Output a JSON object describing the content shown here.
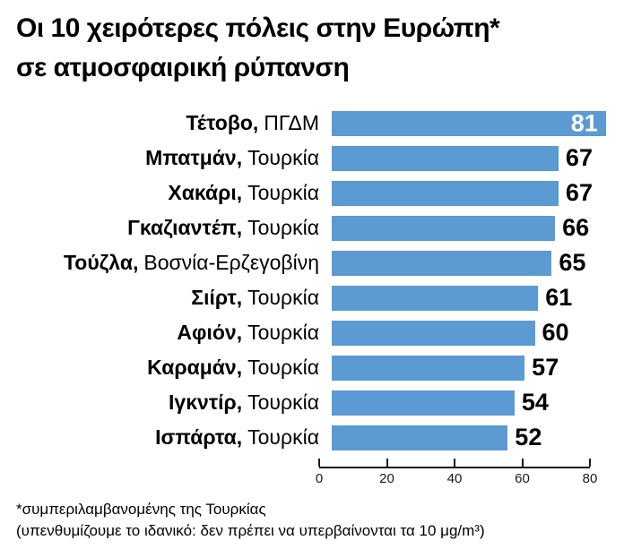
{
  "title": {
    "line1": "Οι 10 χειρότερες πόλεις στην Ευρώπη*",
    "line2": "σε ατμοσφαιρική ρύπανση"
  },
  "chart_data": {
    "type": "bar",
    "orientation": "horizontal",
    "title": "Οι 10 χειρότερες πόλεις στην Ευρώπη* σε ατμοσφαιρική ρύπανση",
    "categories": [
      "Τέτοβο, ΠΓΔΜ",
      "Μπατμάν, Τουρκία",
      "Χακάρι, Τουρκία",
      "Γκαζιαντέπ, Τουρκία",
      "Τούζλα, Βοσνία-Ερζεγοβίνη",
      "Σιίρτ, Τουρκία",
      "Αφιόν, Τουρκία",
      "Καραμάν, Τουρκία",
      "Ιγκντίρ, Τουρκία",
      "Ισπάρτα, Τουρκία"
    ],
    "values": [
      81,
      67,
      67,
      66,
      65,
      61,
      60,
      57,
      54,
      52
    ],
    "rows": [
      {
        "city": "Τέτοβο,",
        "country": "ΠΓΔΜ",
        "value": 81
      },
      {
        "city": "Μπατμάν,",
        "country": "Τουρκία",
        "value": 67
      },
      {
        "city": "Χακάρι,",
        "country": "Τουρκία",
        "value": 67
      },
      {
        "city": "Γκαζιαντέπ,",
        "country": "Τουρκία",
        "value": 66
      },
      {
        "city": "Τούζλα,",
        "country": "Βοσνία-Ερζεγοβίνη",
        "value": 65
      },
      {
        "city": "Σιίρτ,",
        "country": "Τουρκία",
        "value": 61
      },
      {
        "city": "Αφιόν,",
        "country": "Τουρκία",
        "value": 60
      },
      {
        "city": "Καραμάν,",
        "country": "Τουρκία",
        "value": 57
      },
      {
        "city": "Ιγκντίρ,",
        "country": "Τουρκία",
        "value": 54
      },
      {
        "city": "Ισπάρτα,",
        "country": "Τουρκία",
        "value": 52
      }
    ],
    "xlabel": "",
    "ylabel": "",
    "xlim": [
      0,
      80
    ],
    "x_ticks": [
      0,
      20,
      40,
      60,
      80
    ],
    "grid": false,
    "legend": false,
    "bar_color": "#5b9ad2",
    "value_label_color_inside": "#ffffff",
    "value_label_color_outside": "#000000",
    "value_label_position_note": "first bar label inside bar, others outside right of bar"
  },
  "footnotes": {
    "line1": "*συμπεριλαμβανομένης της Τουρκίας",
    "line2": "(υπενθυμίζουμε το ιδανικό: δεν πρέπει να υπερβαίνονται τα 10 μg/m³)"
  }
}
